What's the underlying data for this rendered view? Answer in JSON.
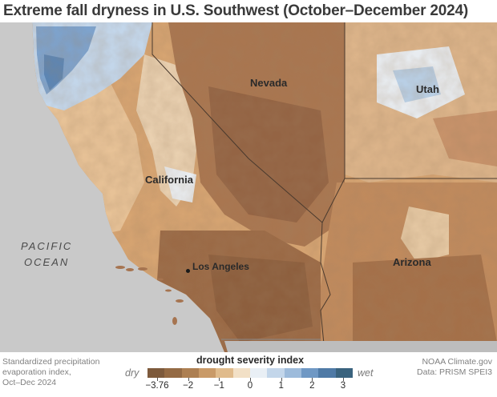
{
  "title": "Extreme fall dryness in U.S. Southwest (October–December 2024)",
  "labels": {
    "nevada": "Nevada",
    "utah": "Utah",
    "california": "California",
    "arizona": "Arizona",
    "ocean_line1": "PACIFIC",
    "ocean_line2": "OCEAN",
    "city": "Los Angeles"
  },
  "legend": {
    "title": "drought severity index",
    "dry": "dry",
    "wet": "wet",
    "ticks": [
      "−3.76",
      "−2",
      "−1",
      "0",
      "1",
      "2",
      "3"
    ],
    "colors": [
      "#7d5a3c",
      "#946a44",
      "#ad7f52",
      "#c99a68",
      "#e0bb8c",
      "#f2e0c6",
      "#e9eff5",
      "#c3d6ea",
      "#9dbbdb",
      "#6f98c4",
      "#4f7aa6",
      "#3a637e"
    ]
  },
  "note": {
    "line1": "Standardized precipitation",
    "line2": "evaporation index,",
    "line3": "Oct–Dec 2024"
  },
  "credit": {
    "line1": "NOAA Climate.gov",
    "line2": "Data: PRISM SPEI3"
  },
  "colors": {
    "ocean": "#c9c9c9",
    "land_light": "#e8c59a",
    "land_mid": "#c48a57",
    "land_dark": "#9a6a42",
    "wet_light": "#d8e4ef",
    "wet_dark": "#6e95c1"
  }
}
